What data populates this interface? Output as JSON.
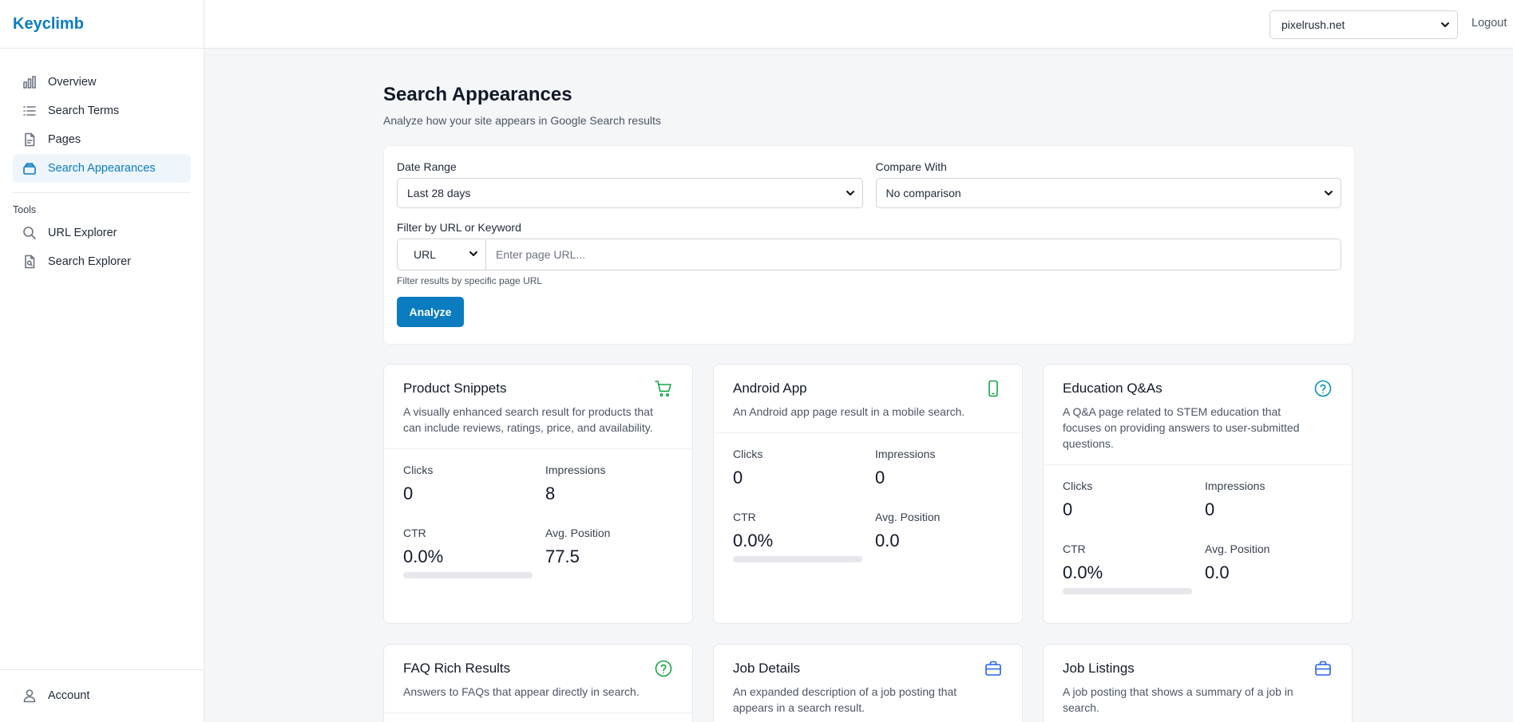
{
  "brand": "Keyclimb",
  "header": {
    "site": "pixelrush.net",
    "logout": "Logout"
  },
  "sidebar": {
    "items": [
      {
        "label": "Overview",
        "icon": "bar-chart-icon"
      },
      {
        "label": "Search Terms",
        "icon": "list-icon"
      },
      {
        "label": "Pages",
        "icon": "document-icon"
      },
      {
        "label": "Search Appearances",
        "icon": "stack-icon",
        "active": true
      }
    ],
    "tools_title": "Tools",
    "tools": [
      {
        "label": "URL Explorer",
        "icon": "search-icon"
      },
      {
        "label": "Search Explorer",
        "icon": "search-document-icon"
      }
    ],
    "account": "Account"
  },
  "page": {
    "title": "Search Appearances",
    "subtitle": "Analyze how your site appears in Google Search results"
  },
  "filters": {
    "date_label": "Date Range",
    "date_value": "Last 28 days",
    "compare_label": "Compare With",
    "compare_value": "No comparison",
    "filter_label": "Filter by URL or Keyword",
    "filter_type": "URL",
    "filter_placeholder": "Enter page URL...",
    "filter_value": "",
    "hint": "Filter results by specific page URL",
    "analyze": "Analyze"
  },
  "stat_labels": {
    "clicks": "Clicks",
    "impressions": "Impressions",
    "ctr": "CTR",
    "position": "Avg. Position"
  },
  "cards": [
    {
      "title": "Product Snippets",
      "desc": "A visually enhanced search result for products that can include reviews, ratings, price, and availability.",
      "icon": "cart-icon",
      "icon_color": "#16a34a",
      "clicks": "0",
      "impressions": "8",
      "ctr": "0.0%",
      "ctr_fraction": 0,
      "position": "77.5"
    },
    {
      "title": "Android App",
      "desc": "An Android app page result in a mobile search.",
      "icon": "phone-icon",
      "icon_color": "#16a34a",
      "clicks": "0",
      "impressions": "0",
      "ctr": "0.0%",
      "ctr_fraction": 0,
      "position": "0.0"
    },
    {
      "title": "Education Q&As",
      "desc": "A Q&A page related to STEM education that focuses on providing answers to user-submitted questions.",
      "icon": "question-circle-icon",
      "icon_color": "#0891b2",
      "clicks": "0",
      "impressions": "0",
      "ctr": "0.0%",
      "ctr_fraction": 0,
      "position": "0.0"
    },
    {
      "title": "FAQ Rich Results",
      "desc": "Answers to FAQs that appear directly in search.",
      "icon": "question-circle-icon",
      "icon_color": "#16a34a"
    },
    {
      "title": "Job Details",
      "desc": "An expanded description of a job posting that appears in a search result.",
      "icon": "briefcase-icon",
      "icon_color": "#2563eb"
    },
    {
      "title": "Job Listings",
      "desc": "A job posting that shows a summary of a job in search.",
      "icon": "briefcase-icon",
      "icon_color": "#2563eb"
    }
  ]
}
